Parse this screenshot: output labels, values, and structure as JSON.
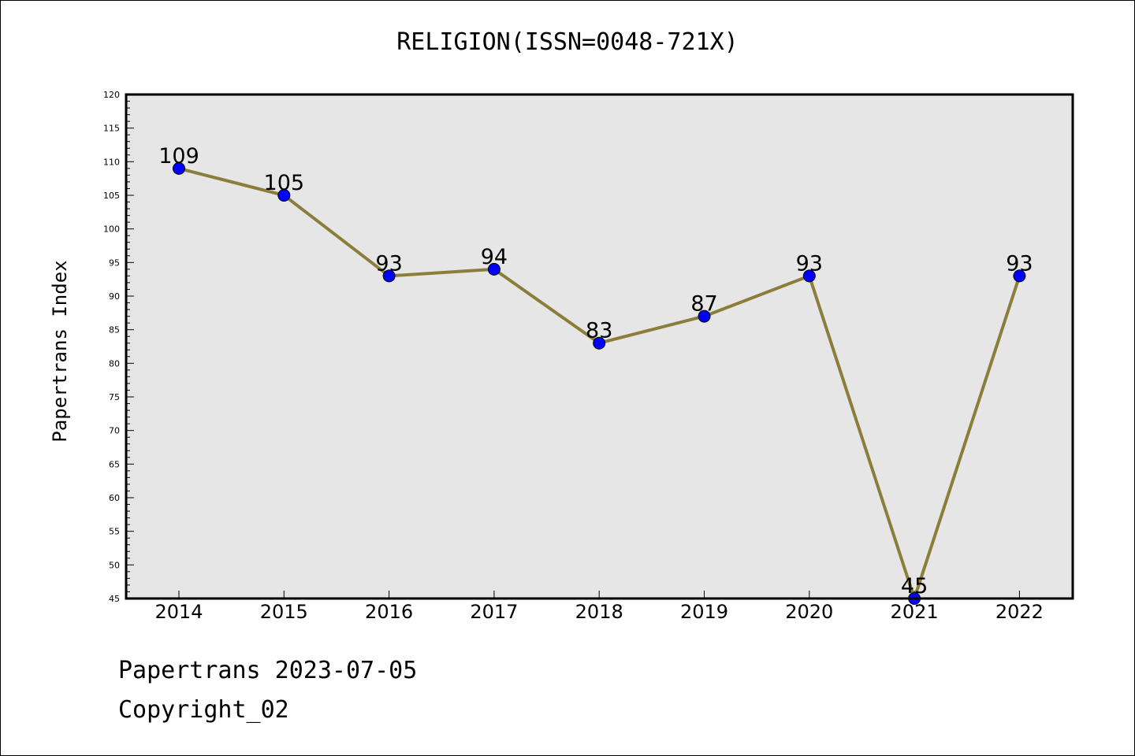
{
  "chart_data": {
    "type": "line",
    "title": "RELIGION(ISSN=0048-721X)",
    "xlabel": "",
    "ylabel": "Papertrans Index",
    "categories": [
      "2014",
      "2015",
      "2016",
      "2017",
      "2018",
      "2019",
      "2020",
      "2021",
      "2022"
    ],
    "values": [
      109,
      105,
      93,
      94,
      83,
      87,
      93,
      45,
      93
    ],
    "ylim": [
      45,
      120
    ],
    "yticks": [
      45,
      50,
      55,
      60,
      65,
      70,
      75,
      80,
      85,
      90,
      95,
      100,
      105,
      110,
      115,
      120
    ],
    "grid": false,
    "legend": "none",
    "colors": {
      "line": "#8B7D3A",
      "marker": "#0000FF",
      "plot_background": "#E6E6E6"
    }
  },
  "footer": {
    "date_line": "Papertrans 2023-07-05",
    "copyright_line": "Copyright_02"
  }
}
